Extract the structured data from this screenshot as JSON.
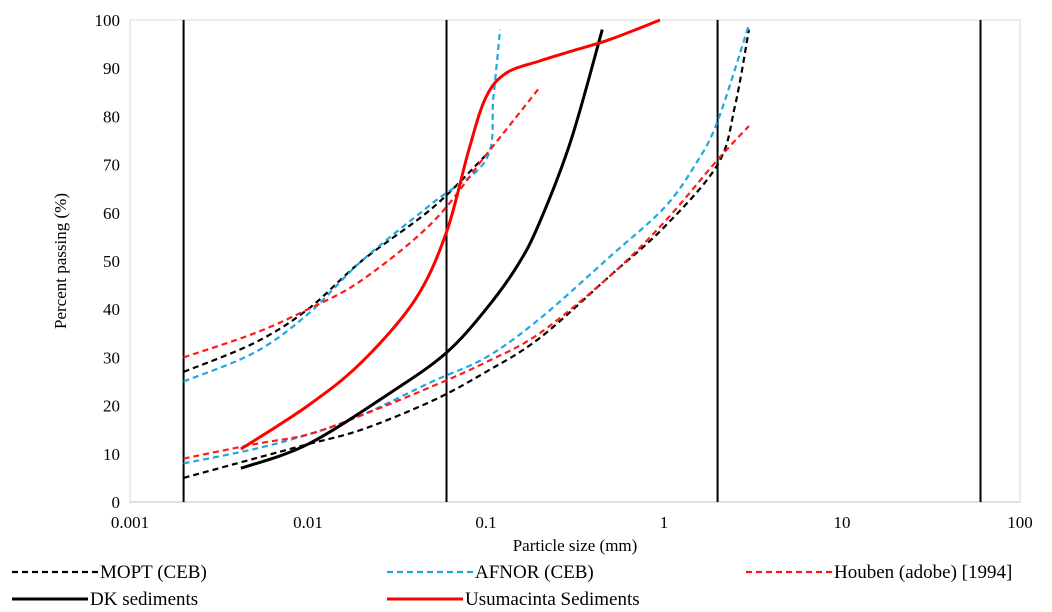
{
  "chart_data": {
    "type": "line",
    "xscale": "log",
    "xlim": [
      0.001,
      100
    ],
    "ylim": [
      0,
      100
    ],
    "xlabel": "Particle size (mm)",
    "ylabel": "Percent passing (%)",
    "x_ticks": [
      0.001,
      0.01,
      0.1,
      1,
      10,
      100
    ],
    "x_tick_labels": [
      "0.001",
      "0.01",
      "0.1",
      "1",
      "10",
      "100"
    ],
    "y_ticks": [
      0,
      10,
      20,
      30,
      40,
      50,
      60,
      70,
      80,
      90,
      100
    ],
    "y_tick_labels": [
      "0",
      "10",
      "20",
      "30",
      "40",
      "50",
      "60",
      "70",
      "80",
      "90",
      "100"
    ],
    "vertical_gridlines_x": [
      0.002,
      0.06,
      2,
      60
    ],
    "grid": false,
    "legend_position": "bottom",
    "series": [
      {
        "name": "MOPT (CEB)",
        "color": "#000000",
        "dash": "dashed",
        "curves": [
          [
            [
              0.002,
              27
            ],
            [
              0.005,
              33
            ],
            [
              0.01,
              40
            ],
            [
              0.02,
              50
            ],
            [
              0.05,
              61
            ],
            [
              0.1,
              72
            ]
          ],
          [
            [
              0.002,
              5
            ],
            [
              0.005,
              9
            ],
            [
              0.01,
              12
            ],
            [
              0.02,
              15
            ],
            [
              0.05,
              21
            ],
            [
              0.1,
              27
            ],
            [
              0.2,
              34
            ],
            [
              0.5,
              47
            ],
            [
              1,
              57
            ],
            [
              2,
              70
            ],
            [
              2.5,
              82
            ],
            [
              3,
              98
            ]
          ]
        ]
      },
      {
        "name": "AFNOR (CEB)",
        "color": "#1fa8e0",
        "dash": "dashed",
        "curves": [
          [
            [
              0.002,
              25
            ],
            [
              0.005,
              31
            ],
            [
              0.01,
              39
            ],
            [
              0.02,
              50
            ],
            [
              0.05,
              62
            ],
            [
              0.1,
              71
            ],
            [
              0.11,
              84
            ],
            [
              0.12,
              98
            ]
          ],
          [
            [
              0.002,
              8
            ],
            [
              0.005,
              11
            ],
            [
              0.01,
              14
            ],
            [
              0.02,
              18
            ],
            [
              0.05,
              25
            ],
            [
              0.1,
              30
            ],
            [
              0.2,
              38
            ],
            [
              0.5,
              51
            ],
            [
              1,
              61
            ],
            [
              1.5,
              70
            ],
            [
              2,
              79
            ],
            [
              3,
              99
            ]
          ]
        ]
      },
      {
        "name": "Houben (adobe) [1994]",
        "color": "#ff1a1a",
        "dash": "dashed",
        "curves": [
          [
            [
              0.002,
              30
            ],
            [
              0.005,
              35
            ],
            [
              0.01,
              40
            ],
            [
              0.02,
              46
            ],
            [
              0.05,
              58
            ],
            [
              0.1,
              72
            ],
            [
              0.2,
              86
            ]
          ],
          [
            [
              0.002,
              9
            ],
            [
              0.005,
              12
            ],
            [
              0.01,
              14
            ],
            [
              0.02,
              18
            ],
            [
              0.05,
              24
            ],
            [
              0.1,
              29
            ],
            [
              0.2,
              35
            ],
            [
              0.5,
              47
            ],
            [
              1,
              58
            ],
            [
              2,
              71
            ],
            [
              3,
              78
            ]
          ]
        ]
      },
      {
        "name": "DK sediments",
        "color": "#000000",
        "dash": "solid",
        "curves": [
          [
            [
              0.0042,
              7
            ],
            [
              0.01,
              12
            ],
            [
              0.03,
              23
            ],
            [
              0.06,
              31
            ],
            [
              0.1,
              40
            ],
            [
              0.15,
              49
            ],
            [
              0.2,
              58
            ],
            [
              0.3,
              75
            ],
            [
              0.45,
              98
            ]
          ]
        ]
      },
      {
        "name": "Usumacinta Sediments",
        "color": "#ff0000",
        "dash": "solid",
        "curves": [
          [
            [
              0.0042,
              11
            ],
            [
              0.01,
              20
            ],
            [
              0.02,
              29
            ],
            [
              0.04,
              42
            ],
            [
              0.06,
              56
            ],
            [
              0.08,
              73
            ],
            [
              0.1,
              84
            ],
            [
              0.13,
              89
            ],
            [
              0.2,
              91.5
            ],
            [
              0.3,
              93.5
            ],
            [
              0.5,
              96
            ],
            [
              0.95,
              100
            ]
          ]
        ]
      }
    ]
  }
}
